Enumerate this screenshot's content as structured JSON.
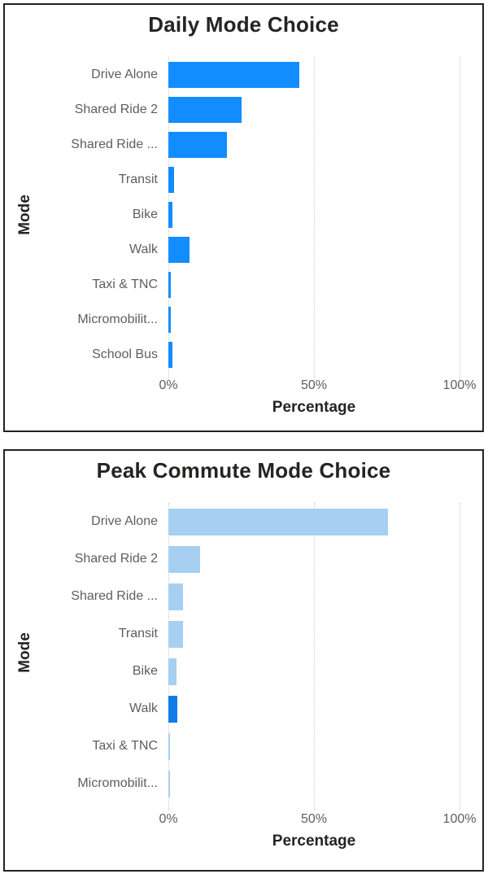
{
  "canvas": {
    "background": "#FFFFFF"
  },
  "chart_data": [
    {
      "type": "bar",
      "orientation": "horizontal",
      "title": "Daily Mode Choice",
      "xlabel": "Percentage",
      "ylabel": "Mode",
      "xlim": [
        0,
        100
      ],
      "x_ticks": [
        {
          "value": 0,
          "label": "0%"
        },
        {
          "value": 50,
          "label": "50%"
        },
        {
          "value": 100,
          "label": "100%"
        }
      ],
      "grid": "vertical-dotted",
      "gridline_color": "#C9C7C5",
      "bar_color": "#118DFF",
      "categories": [
        "Drive Alone",
        "Shared Ride 2",
        "Shared Ride ...",
        "Transit",
        "Bike",
        "Walk",
        "Taxi & TNC",
        "Micromobilit...",
        "School Bus"
      ],
      "values": [
        45,
        25,
        20,
        2,
        1.3,
        7.2,
        0.9,
        0.8,
        1.3
      ]
    },
    {
      "type": "bar",
      "orientation": "horizontal",
      "title": "Peak Commute Mode Choice",
      "xlabel": "Percentage",
      "ylabel": "Mode",
      "xlim": [
        0,
        100
      ],
      "x_ticks": [
        {
          "value": 0,
          "label": "0%"
        },
        {
          "value": 50,
          "label": "50%"
        },
        {
          "value": 100,
          "label": "100%"
        }
      ],
      "grid": "vertical-dotted",
      "gridline_color": "#C9C7C5",
      "bar_color": "#A6CFF2",
      "highlight": {
        "category": "Walk",
        "color": "#0F7CE8"
      },
      "categories": [
        "Drive Alone",
        "Shared Ride 2",
        "Shared Ride ...",
        "Transit",
        "Bike",
        "Walk",
        "Taxi & TNC",
        "Micromobilit..."
      ],
      "values": [
        75.5,
        11,
        5,
        5,
        2.8,
        3.2,
        0.4,
        0.4
      ]
    }
  ]
}
